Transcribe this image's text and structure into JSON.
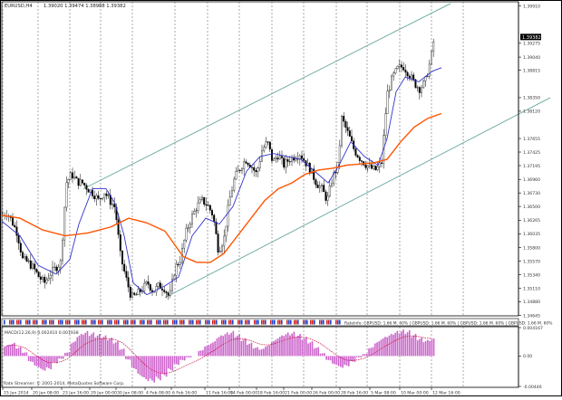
{
  "header": {
    "symbol": "EURUSD,H4",
    "ohlc": "1.39020 1.39474 1.38988 1.39382"
  },
  "price_axis": {
    "ticks": [
      "1.39910",
      "1.39275",
      "1.39040",
      "1.38815",
      "1.38350",
      "1.38120",
      "1.37655",
      "1.37425",
      "1.37195",
      "1.36960",
      "1.36730",
      "1.36500",
      "1.36265",
      "1.36035",
      "1.35800",
      "1.35570",
      "1.35340",
      "1.35110",
      "1.34880",
      "1.34645"
    ],
    "current_price": "1.39382"
  },
  "time_axis": {
    "labels": [
      "15 Jan 2014",
      "20 Jan 08:00",
      "23 Jan 16:00",
      "29 Jan 00:00",
      "30 Jan 08:00",
      "4 Feb 08:00",
      "6 Feb 16:00",
      "11 Feb 16:00",
      "14 Feb 00:00",
      "18 Feb 16:00",
      "21 Feb 00:00",
      "26 Feb 00:00",
      "28 Feb 16:00",
      "5 Mar 08:00",
      "10 Mar 00:00",
      "12 Mar 16:00"
    ]
  },
  "strip": {
    "text": "RateInfo: GBPUSD: 1.66 M. 60% | GBPUSD: 1.66 M. 60% | GBPUSD: 1.66 M. 60% | GBPUSD: 1.66 M. 60%"
  },
  "macd": {
    "label": "MACD(12,26,9) 0.002410 0.001938",
    "ticks": [
      "0.004167",
      "0.00",
      "-0.00446"
    ]
  },
  "footer": {
    "copyright": "Rate Streamer: © 2001-2014, MetaQuotes Software Corp."
  },
  "colors": {
    "candle": "#000000",
    "fast_ma": "#3333cc",
    "slow_ma": "#ff5500",
    "channel": "#66a6a0",
    "macd_hist": "#cc66cc",
    "macd_signal": "#cc0033",
    "current_price_bg": "#000000"
  },
  "chart_data": {
    "type": "candlestick",
    "symbol": "EURUSD",
    "timeframe": "H4",
    "ylim": [
      1.3464,
      1.3998
    ],
    "close_path": [
      [
        0,
        1.3635
      ],
      [
        5,
        1.364
      ],
      [
        10,
        1.3625
      ],
      [
        16,
        1.3605
      ],
      [
        22,
        1.356
      ],
      [
        28,
        1.3555
      ],
      [
        34,
        1.3545
      ],
      [
        40,
        1.353
      ],
      [
        46,
        1.352
      ],
      [
        52,
        1.3535
      ],
      [
        58,
        1.3545
      ],
      [
        64,
        1.3555
      ],
      [
        70,
        1.369
      ],
      [
        76,
        1.3705
      ],
      [
        82,
        1.3692
      ],
      [
        88,
        1.369
      ],
      [
        94,
        1.368
      ],
      [
        100,
        1.3672
      ],
      [
        106,
        1.366
      ],
      [
        112,
        1.3675
      ],
      [
        118,
        1.366
      ],
      [
        124,
        1.3648
      ],
      [
        130,
        1.3565
      ],
      [
        136,
        1.3528
      ],
      [
        142,
        1.3495
      ],
      [
        148,
        1.35
      ],
      [
        154,
        1.351
      ],
      [
        160,
        1.352
      ],
      [
        166,
        1.3505
      ],
      [
        172,
        1.3515
      ],
      [
        178,
        1.3512
      ],
      [
        184,
        1.3495
      ],
      [
        190,
        1.3545
      ],
      [
        196,
        1.356
      ],
      [
        202,
        1.3605
      ],
      [
        208,
        1.363
      ],
      [
        214,
        1.365
      ],
      [
        220,
        1.366
      ],
      [
        226,
        1.3652
      ],
      [
        232,
        1.3635
      ],
      [
        238,
        1.3575
      ],
      [
        244,
        1.3595
      ],
      [
        250,
        1.366
      ],
      [
        256,
        1.37
      ],
      [
        262,
        1.3715
      ],
      [
        268,
        1.373
      ],
      [
        274,
        1.372
      ],
      [
        280,
        1.3705
      ],
      [
        286,
        1.3745
      ],
      [
        292,
        1.376
      ],
      [
        298,
        1.3725
      ],
      [
        304,
        1.3738
      ],
      [
        310,
        1.372
      ],
      [
        316,
        1.373
      ],
      [
        322,
        1.3735
      ],
      [
        328,
        1.374
      ],
      [
        334,
        1.3725
      ],
      [
        340,
        1.371
      ],
      [
        346,
        1.369
      ],
      [
        352,
        1.368
      ],
      [
        358,
        1.366
      ],
      [
        364,
        1.37
      ],
      [
        370,
        1.372
      ],
      [
        374,
        1.38
      ],
      [
        378,
        1.3785
      ],
      [
        382,
        1.377
      ],
      [
        388,
        1.3745
      ],
      [
        394,
        1.3732
      ],
      [
        400,
        1.3722
      ],
      [
        406,
        1.3715
      ],
      [
        412,
        1.3712
      ],
      [
        418,
        1.3725
      ],
      [
        424,
        1.384
      ],
      [
        430,
        1.387
      ],
      [
        436,
        1.3885
      ],
      [
        442,
        1.3888
      ],
      [
        448,
        1.3876
      ],
      [
        454,
        1.386
      ],
      [
        460,
        1.385
      ],
      [
        466,
        1.3862
      ],
      [
        472,
        1.3898
      ],
      [
        476,
        1.3938
      ]
    ],
    "series": [
      {
        "role": "fast_ma",
        "values": [
          [
            0,
            1.3625
          ],
          [
            20,
            1.36
          ],
          [
            40,
            1.355
          ],
          [
            60,
            1.3535
          ],
          [
            75,
            1.356
          ],
          [
            85,
            1.362
          ],
          [
            100,
            1.368
          ],
          [
            115,
            1.368
          ],
          [
            125,
            1.3655
          ],
          [
            135,
            1.36
          ],
          [
            145,
            1.352
          ],
          [
            160,
            1.35
          ],
          [
            180,
            1.3515
          ],
          [
            195,
            1.353
          ],
          [
            210,
            1.36
          ],
          [
            225,
            1.363
          ],
          [
            240,
            1.362
          ],
          [
            255,
            1.365
          ],
          [
            270,
            1.371
          ],
          [
            285,
            1.3735
          ],
          [
            300,
            1.374
          ],
          [
            315,
            1.3735
          ],
          [
            330,
            1.373
          ],
          [
            345,
            1.371
          ],
          [
            360,
            1.369
          ],
          [
            372,
            1.372
          ],
          [
            385,
            1.376
          ],
          [
            400,
            1.3735
          ],
          [
            415,
            1.372
          ],
          [
            425,
            1.3765
          ],
          [
            435,
            1.3845
          ],
          [
            445,
            1.387
          ],
          [
            460,
            1.3862
          ],
          [
            475,
            1.388
          ],
          [
            485,
            1.3886
          ]
        ]
      },
      {
        "role": "slow_ma",
        "values": [
          [
            0,
            1.3635
          ],
          [
            20,
            1.363
          ],
          [
            45,
            1.361
          ],
          [
            70,
            1.36
          ],
          [
            95,
            1.3605
          ],
          [
            120,
            1.3615
          ],
          [
            140,
            1.363
          ],
          [
            160,
            1.3622
          ],
          [
            180,
            1.3608
          ],
          [
            200,
            1.3565
          ],
          [
            215,
            1.3555
          ],
          [
            230,
            1.3555
          ],
          [
            245,
            1.357
          ],
          [
            260,
            1.36
          ],
          [
            275,
            1.363
          ],
          [
            290,
            1.366
          ],
          [
            305,
            1.368
          ],
          [
            320,
            1.369
          ],
          [
            335,
            1.3705
          ],
          [
            350,
            1.3712
          ],
          [
            365,
            1.3715
          ],
          [
            380,
            1.372
          ],
          [
            395,
            1.3722
          ],
          [
            410,
            1.3724
          ],
          [
            425,
            1.373
          ],
          [
            440,
            1.376
          ],
          [
            455,
            1.3785
          ],
          [
            470,
            1.38
          ],
          [
            485,
            1.3808
          ]
        ]
      }
    ],
    "channel_lines": [
      {
        "from": [
          90,
          1.368
        ],
        "to": [
          495,
          1.3995
        ]
      },
      {
        "from": [
          180,
          1.3495
        ],
        "to": [
          605,
          1.3835
        ]
      }
    ],
    "macd": {
      "type": "bar",
      "hist": [
        0.0015,
        0.0018,
        0.0012,
        0.0005,
        -0.0008,
        -0.0015,
        -0.002,
        -0.0018,
        -0.001,
        -0.0004,
        0.0005,
        0.002,
        0.003,
        0.0034,
        0.0032,
        0.003,
        0.0028,
        0.0025,
        0.002,
        0.001,
        -0.0005,
        -0.0018,
        -0.0028,
        -0.0034,
        -0.0036,
        -0.0033,
        -0.0028,
        -0.002,
        -0.0012,
        -0.0006,
        -0.0002,
        0.0,
        0.0008,
        0.0015,
        0.002,
        0.0028,
        0.0032,
        0.0034,
        0.003,
        0.0024,
        0.0018,
        0.0012,
        0.001,
        0.0015,
        0.0022,
        0.0028,
        0.0032,
        0.0033,
        0.003,
        0.0026,
        0.002,
        0.0012,
        0.0004,
        -0.0006,
        -0.0012,
        -0.0016,
        -0.0014,
        -0.0008,
        -0.0002,
        0.0003,
        0.0012,
        0.002,
        0.0026,
        0.003,
        0.0034,
        0.0036,
        0.0035,
        0.003,
        0.0025,
        0.0022,
        0.0024
      ],
      "ylim": [
        -0.00446,
        0.004167
      ]
    }
  }
}
